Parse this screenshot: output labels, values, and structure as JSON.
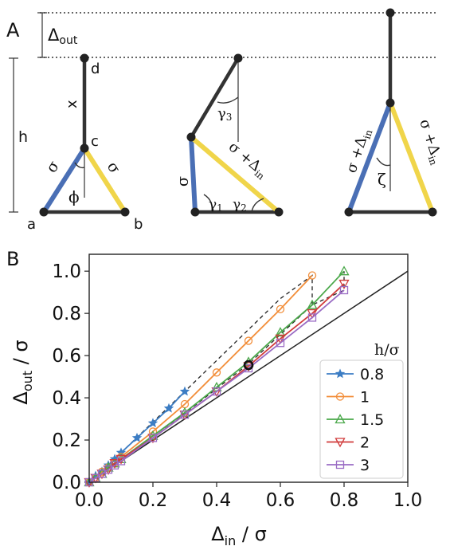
{
  "panel_a": {
    "label": "A",
    "delta_out": "Δ",
    "delta_out_sub": "out",
    "h_label": "h",
    "x_label": "x",
    "phi": "ϕ",
    "zeta": "ζ",
    "gamma": "γ",
    "g1": "1",
    "g2": "2",
    "g3": "3",
    "sigma": "σ",
    "sigma_plus": "σ +Δ",
    "sub_in": "in",
    "node_a": "a",
    "node_b": "b",
    "node_c": "c",
    "node_d": "d",
    "colors": {
      "blue": "#4a6fb5",
      "yellow": "#f0d54a",
      "rod": "#333333"
    }
  },
  "panel_b": {
    "label": "B",
    "legend_title": "h/σ"
  },
  "chart_data": {
    "type": "line",
    "xlabel": {
      "main": "Δ",
      "sub": "in",
      "tail": " / σ"
    },
    "ylabel": {
      "main": "Δ",
      "sub": "out",
      "tail": " / σ"
    },
    "xlim": [
      0,
      1.0
    ],
    "ylim": [
      0,
      1.08
    ],
    "xticks": [
      "0.0",
      "0.2",
      "0.4",
      "0.6",
      "0.8",
      "1.0"
    ],
    "yticks": [
      "0.0",
      "0.2",
      "0.4",
      "0.6",
      "0.8",
      "1.0"
    ],
    "reference_line": {
      "x": [
        0,
        1
      ],
      "y": [
        0,
        1
      ],
      "color": "#222222"
    },
    "series": [
      {
        "name": "0.8",
        "color": "#3c7dc4",
        "marker": "star",
        "x": [
          0.0,
          0.02,
          0.04,
          0.06,
          0.08,
          0.1,
          0.15,
          0.2,
          0.25,
          0.3
        ],
        "y": [
          0.0,
          0.03,
          0.05,
          0.08,
          0.11,
          0.14,
          0.21,
          0.28,
          0.35,
          0.43
        ]
      },
      {
        "name": "1",
        "color": "#f28e3a",
        "marker": "circle",
        "x": [
          0.0,
          0.02,
          0.04,
          0.06,
          0.08,
          0.1,
          0.2,
          0.3,
          0.4,
          0.5,
          0.6,
          0.7
        ],
        "y": [
          0.0,
          0.02,
          0.05,
          0.07,
          0.09,
          0.12,
          0.24,
          0.37,
          0.52,
          0.67,
          0.82,
          0.98
        ]
      },
      {
        "name": "1.5",
        "color": "#4aa84a",
        "marker": "triangle-up",
        "x": [
          0.0,
          0.02,
          0.04,
          0.06,
          0.08,
          0.1,
          0.2,
          0.3,
          0.4,
          0.5,
          0.6,
          0.7,
          0.8
        ],
        "y": [
          0.0,
          0.02,
          0.04,
          0.07,
          0.09,
          0.11,
          0.22,
          0.33,
          0.45,
          0.57,
          0.71,
          0.84,
          1.0
        ]
      },
      {
        "name": "2",
        "color": "#d13b3b",
        "marker": "triangle-down",
        "x": [
          0.0,
          0.02,
          0.04,
          0.06,
          0.08,
          0.1,
          0.2,
          0.3,
          0.4,
          0.5,
          0.6,
          0.7,
          0.8
        ],
        "y": [
          0.0,
          0.02,
          0.04,
          0.06,
          0.09,
          0.11,
          0.21,
          0.32,
          0.43,
          0.55,
          0.68,
          0.8,
          0.94
        ]
      },
      {
        "name": "3",
        "color": "#9a6cc4",
        "marker": "square",
        "x": [
          0.0,
          0.02,
          0.04,
          0.06,
          0.08,
          0.1,
          0.2,
          0.3,
          0.4,
          0.5,
          0.6,
          0.7,
          0.8
        ],
        "y": [
          0.0,
          0.02,
          0.04,
          0.06,
          0.08,
          0.1,
          0.21,
          0.32,
          0.43,
          0.54,
          0.66,
          0.78,
          0.91
        ]
      }
    ],
    "dashed_guides": [
      {
        "x": [
          0.0,
          0.1,
          0.3,
          0.6,
          0.7,
          0.7
        ],
        "y": [
          0.0,
          0.14,
          0.43,
          0.87,
          0.98,
          0.84
        ]
      },
      {
        "x": [
          0.0,
          0.2,
          0.5,
          0.7,
          0.8,
          0.8
        ],
        "y": [
          0.0,
          0.21,
          0.56,
          0.84,
          0.91,
          1.0
        ]
      }
    ],
    "highlight": {
      "x": 0.5,
      "y": 0.555
    }
  }
}
